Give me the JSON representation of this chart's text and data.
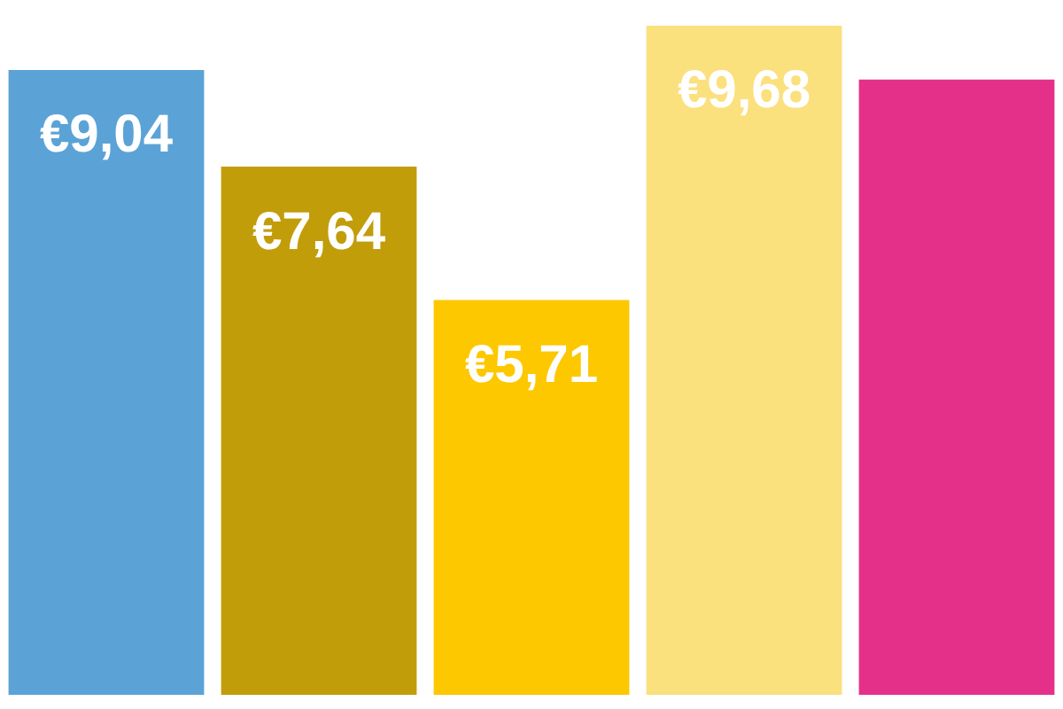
{
  "chart_data": {
    "type": "bar",
    "categories": [
      null,
      null,
      null,
      null,
      null
    ],
    "values": [
      9.04,
      7.64,
      5.71,
      9.68,
      8.9
    ],
    "colors": [
      "#5ba3d6",
      "#c29d0a",
      "#fdc800",
      "#fbe07e",
      "#e5308a"
    ],
    "value_labels": [
      "€9,04",
      "€7,64",
      "€5,71",
      "€9,68",
      null
    ]
  }
}
